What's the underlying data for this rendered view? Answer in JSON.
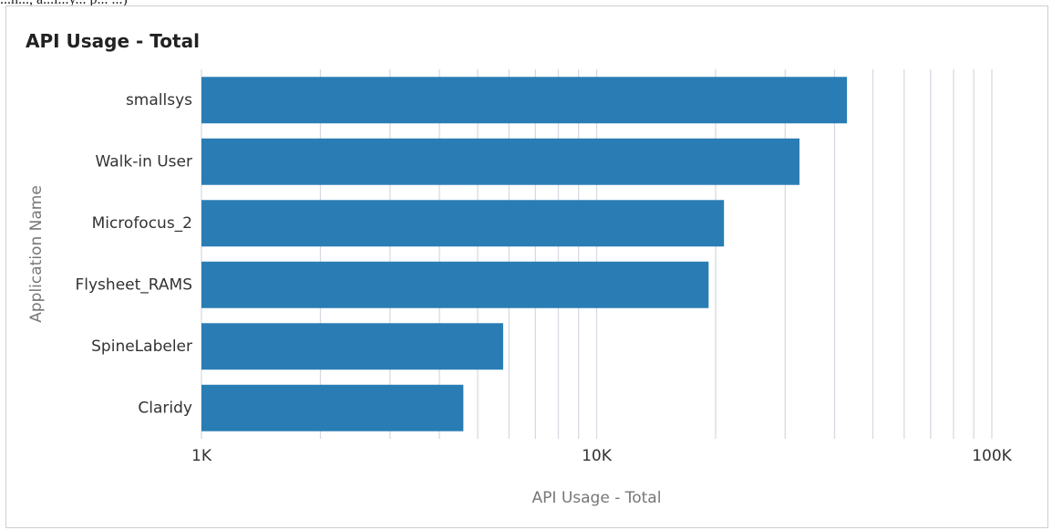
{
  "clipped_header_text": "...h..., a...i...y... p... ...)",
  "panel": {
    "title": "API Usage - Total"
  },
  "colors": {
    "bar": "#2a7db4",
    "grid": "#d6dbe3",
    "axis_text": "#333333",
    "axis_label": "#777777"
  },
  "chart_data": {
    "type": "bar",
    "orientation": "horizontal",
    "title": "API Usage - Total",
    "xlabel": "API Usage - Total",
    "ylabel": "Application Name",
    "x_scale": "log",
    "xlim": [
      1000,
      100000
    ],
    "x_ticks": [
      {
        "value": 1000,
        "label": "1K"
      },
      {
        "value": 10000,
        "label": "10K"
      },
      {
        "value": 100000,
        "label": "100K"
      }
    ],
    "grid": true,
    "categories": [
      "smallsys",
      "Walk-in User",
      "Microfocus_2",
      "Flysheet_RAMS",
      "SpineLabeler",
      "Claridy"
    ],
    "values": [
      43000,
      32600,
      21000,
      19200,
      5800,
      4600
    ]
  }
}
